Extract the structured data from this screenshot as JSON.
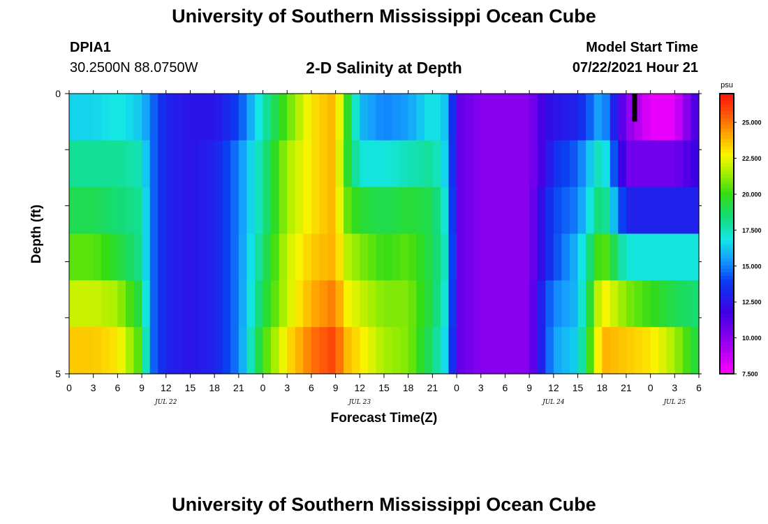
{
  "header": {
    "title": "University of Southern Mississippi Ocean Cube",
    "station_id": "DPIA1",
    "station_coords": "30.2500N  88.0750W",
    "model_start_label": "Model Start Time",
    "model_start_time": "07/22/2021 Hour 21"
  },
  "footer": {
    "title": "University of Southern Mississippi Ocean Cube"
  },
  "chart_data": {
    "type": "heatmap",
    "title": "2-D Salinity at Depth",
    "xlabel": "Forecast Time(Z)",
    "ylabel": "Depth (ft)",
    "x_range_hours": [
      0,
      78
    ],
    "x_start": "07/22/2021 00Z",
    "x_tick_labels": [
      "0",
      "3",
      "6",
      "9",
      "12",
      "15",
      "18",
      "21",
      "0",
      "3",
      "6",
      "9",
      "12",
      "15",
      "18",
      "21",
      "0",
      "3",
      "6",
      "9",
      "12",
      "15",
      "18",
      "21",
      "0",
      "3",
      "6"
    ],
    "date_labels": [
      {
        "hour": 12,
        "label": "JUL 22"
      },
      {
        "hour": 36,
        "label": "JUL 23"
      },
      {
        "hour": 60,
        "label": "JUL 24"
      },
      {
        "hour": 75,
        "label": "JUL 25"
      }
    ],
    "y_range": [
      0,
      5
    ],
    "y_tick_labels": [
      "0",
      "5"
    ],
    "depth_layers": 6,
    "layer_key_hours": [
      0,
      3,
      6,
      9,
      10,
      12,
      15,
      18,
      21,
      24,
      27,
      30,
      33,
      34,
      36,
      39,
      42,
      45,
      47,
      48,
      51,
      54,
      57,
      59,
      60,
      63,
      66,
      69,
      72,
      75,
      78
    ],
    "salinity_by_layer": [
      [
        16.5,
        16.5,
        17,
        16.2,
        15,
        13,
        12.5,
        12.5,
        14,
        17.5,
        20.5,
        23,
        24,
        21,
        16,
        15,
        15.5,
        17,
        16,
        11,
        10,
        10,
        10,
        12,
        12.5,
        13,
        16,
        10,
        8,
        8,
        12
      ],
      [
        18,
        18,
        18,
        17.5,
        15,
        13,
        12.5,
        13,
        15,
        18,
        21.5,
        23,
        24,
        20.5,
        17,
        17,
        17.5,
        18,
        16,
        11,
        10,
        10,
        10,
        12,
        13.5,
        14.5,
        18,
        10.5,
        10.5,
        10.5,
        12
      ],
      [
        19,
        19,
        18.5,
        18,
        15,
        13,
        12.5,
        13,
        15,
        18,
        21.5,
        23,
        24,
        21,
        19.5,
        19,
        19.5,
        19,
        16.5,
        11,
        10,
        10,
        10,
        13,
        14,
        15,
        19,
        13,
        13,
        13,
        13
      ],
      [
        20.5,
        20.5,
        19.5,
        18,
        15,
        13,
        12.5,
        13,
        15,
        18.5,
        22,
        23.5,
        24,
        22,
        21,
        20,
        20.5,
        19,
        17,
        11,
        10,
        10,
        10,
        13,
        14,
        16,
        21,
        17,
        17,
        17,
        17
      ],
      [
        22,
        22,
        21.5,
        19,
        15,
        13,
        12.5,
        13,
        15,
        19,
        22,
        24,
        25,
        23,
        22,
        21,
        21,
        19,
        16.5,
        11,
        10,
        10,
        10,
        14,
        15,
        16,
        23,
        21,
        20,
        19,
        18.5
      ],
      [
        23.5,
        23.5,
        23,
        20,
        15,
        13,
        12.5,
        13,
        15,
        20,
        23,
        25,
        26,
        24,
        23,
        21.5,
        21,
        18.5,
        16,
        11,
        10,
        10,
        10,
        14,
        15.5,
        16.5,
        24,
        23.5,
        23,
        21.5,
        19
      ]
    ],
    "marker_hour": 70,
    "colorbar": {
      "unit": "psu",
      "min": 7.5,
      "max": 27,
      "tick_labels": [
        "25.000",
        "22.500",
        "20.000",
        "17.500",
        "15.000",
        "12.500",
        "10.000",
        "7.500"
      ],
      "tick_values": [
        25,
        22.5,
        20,
        17.5,
        15,
        12.5,
        10,
        7.5
      ]
    }
  }
}
